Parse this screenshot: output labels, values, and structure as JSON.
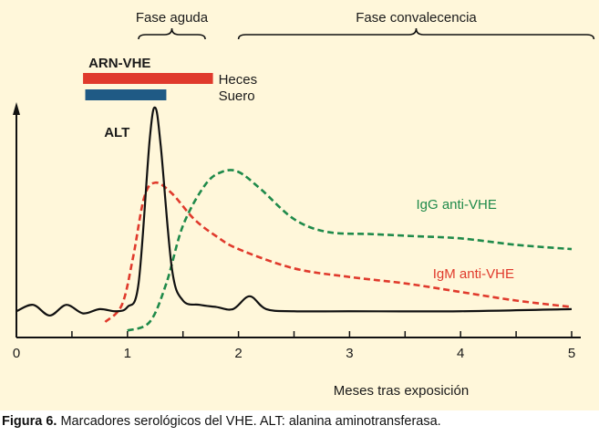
{
  "caption": {
    "prefix": "Figura 6.",
    "text": " Marcadores serológicos del VHE. ALT: alanina aminotransferasa."
  },
  "chart_data": {
    "type": "line",
    "xlabel": "Meses tras exposición",
    "ylabel": "",
    "xlim": [
      0,
      5
    ],
    "xticks": [
      "0",
      "1",
      "2",
      "3",
      "4",
      "5"
    ],
    "grid": false,
    "phases": [
      {
        "label": "Fase aguda",
        "x_start": 1.1,
        "x_end": 1.7
      },
      {
        "label": "Fase convalecencia",
        "x_start": 2.0,
        "x_end": 5.2
      }
    ],
    "rna": {
      "label": "ARN-VHE",
      "bars": [
        {
          "name": "Heces",
          "x_start": 0.6,
          "x_end": 1.77,
          "color": "#e03a2c"
        },
        {
          "name": "Suero",
          "x_start": 0.62,
          "x_end": 1.35,
          "color": "#1f5a85"
        }
      ]
    },
    "series": [
      {
        "name": "ALT",
        "color": "#111111",
        "style": "solid",
        "points": [
          [
            0,
            0.05
          ],
          [
            0.15,
            0.08
          ],
          [
            0.3,
            0.03
          ],
          [
            0.45,
            0.08
          ],
          [
            0.6,
            0.04
          ],
          [
            0.75,
            0.06
          ],
          [
            0.9,
            0.05
          ],
          [
            1.0,
            0.07
          ],
          [
            1.1,
            0.18
          ],
          [
            1.2,
            0.85
          ],
          [
            1.25,
            1.0
          ],
          [
            1.3,
            0.82
          ],
          [
            1.4,
            0.25
          ],
          [
            1.5,
            0.1
          ],
          [
            1.65,
            0.08
          ],
          [
            1.8,
            0.07
          ],
          [
            1.95,
            0.06
          ],
          [
            2.1,
            0.12
          ],
          [
            2.25,
            0.06
          ],
          [
            2.5,
            0.05
          ],
          [
            3.0,
            0.05
          ],
          [
            4.0,
            0.05
          ],
          [
            5.0,
            0.06
          ]
        ]
      },
      {
        "name": "IgM anti-VHE",
        "color": "#e03a2c",
        "style": "dashed",
        "points": [
          [
            0.8,
            0.0
          ],
          [
            0.95,
            0.08
          ],
          [
            1.05,
            0.3
          ],
          [
            1.15,
            0.58
          ],
          [
            1.25,
            0.65
          ],
          [
            1.4,
            0.6
          ],
          [
            1.6,
            0.48
          ],
          [
            1.8,
            0.4
          ],
          [
            2.0,
            0.34
          ],
          [
            2.5,
            0.25
          ],
          [
            3.0,
            0.21
          ],
          [
            3.5,
            0.18
          ],
          [
            4.0,
            0.14
          ],
          [
            4.5,
            0.1
          ],
          [
            5.0,
            0.07
          ]
        ]
      },
      {
        "name": "IgG anti-VHE",
        "color": "#1f8a4a",
        "style": "dashed",
        "points": [
          [
            1.0,
            -0.04
          ],
          [
            1.2,
            0.0
          ],
          [
            1.35,
            0.18
          ],
          [
            1.5,
            0.45
          ],
          [
            1.7,
            0.64
          ],
          [
            1.85,
            0.7
          ],
          [
            2.0,
            0.7
          ],
          [
            2.2,
            0.62
          ],
          [
            2.5,
            0.48
          ],
          [
            2.8,
            0.42
          ],
          [
            3.2,
            0.41
          ],
          [
            3.6,
            0.4
          ],
          [
            4.0,
            0.39
          ],
          [
            4.5,
            0.36
          ],
          [
            5.0,
            0.34
          ]
        ]
      }
    ],
    "annotations": [
      {
        "text": "ALT",
        "series": "ALT"
      },
      {
        "text": "IgG anti-VHE",
        "series": "IgG anti-VHE"
      },
      {
        "text": "IgM anti-VHE",
        "series": "IgM anti-VHE"
      }
    ]
  }
}
